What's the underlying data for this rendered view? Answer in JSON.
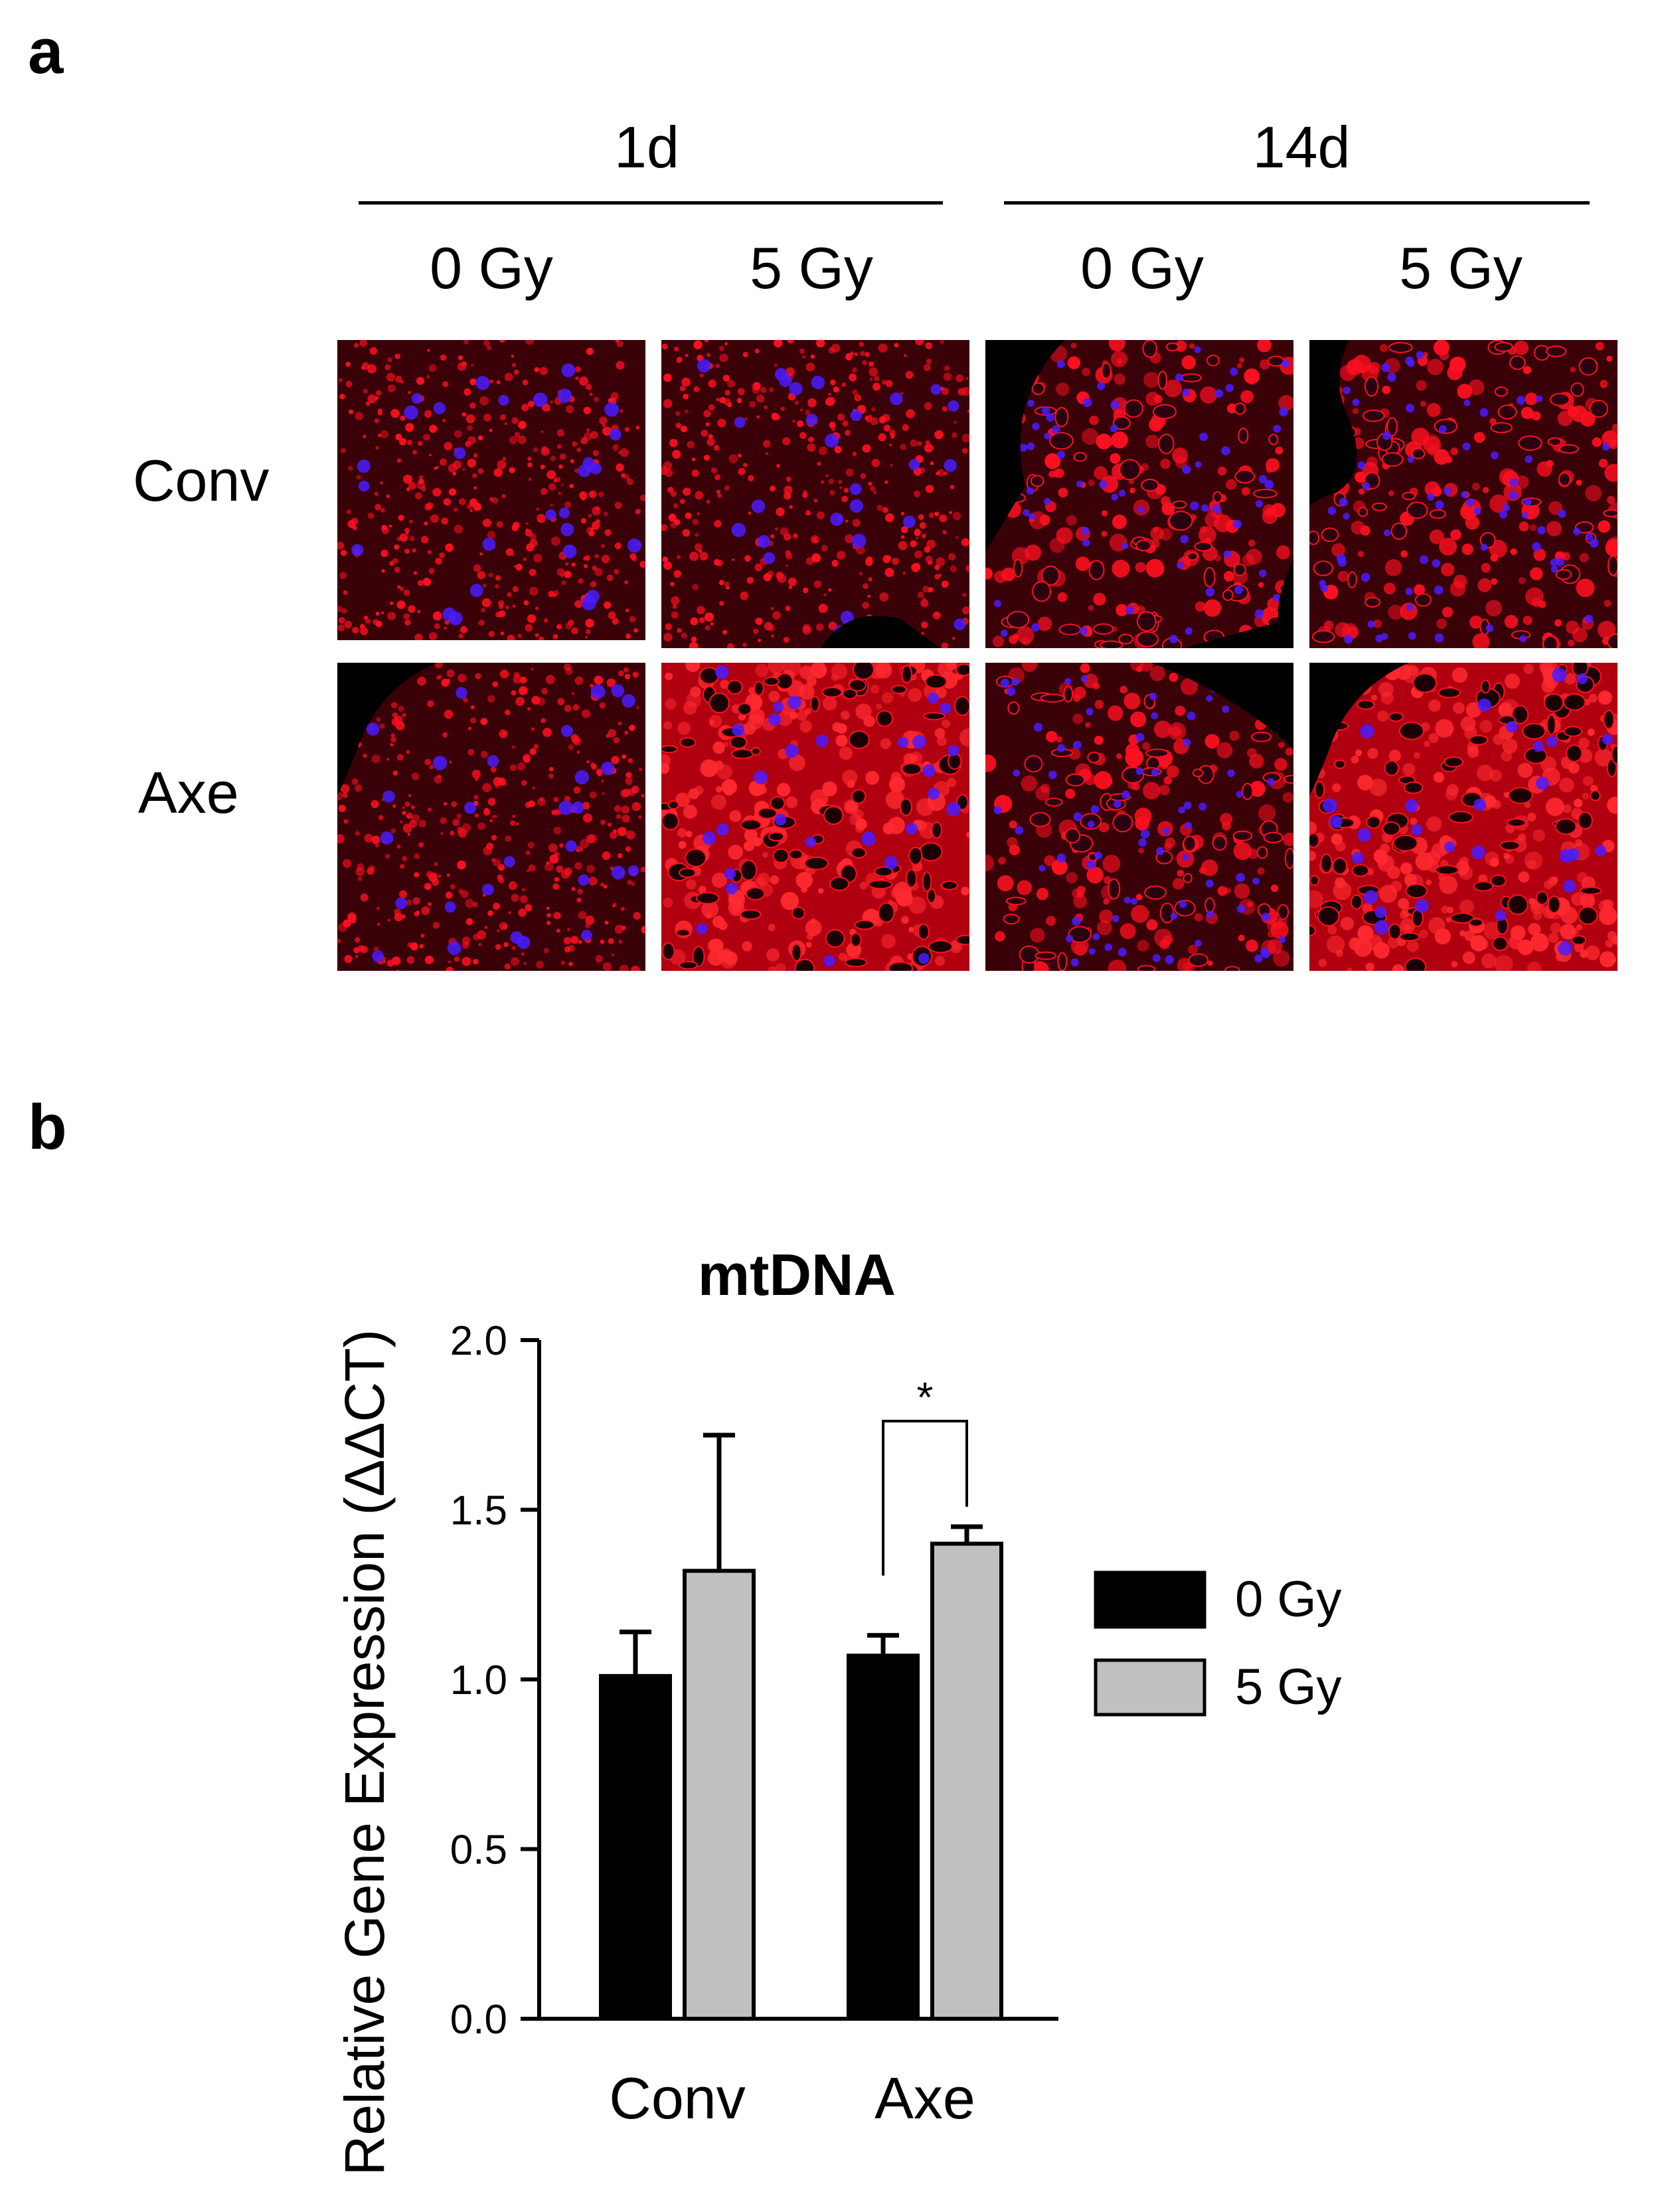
{
  "panel_a": {
    "letter": "a",
    "time_points": [
      "1d",
      "14d"
    ],
    "doses": [
      "0 Gy",
      "5 Gy",
      "0 Gy",
      "5 Gy"
    ],
    "rows": [
      "Conv",
      "Axe"
    ],
    "colors": {
      "stain": "#ff1020",
      "nuclei": "#4a1cff",
      "background": "#000000"
    }
  },
  "panel_b": {
    "letter": "b"
  },
  "chart_data": {
    "type": "bar",
    "title": "mtDNA",
    "ylabel": "Relative Gene Expression (ΔΔCT)",
    "xlabel": "",
    "categories": [
      "Conv",
      "Axe"
    ],
    "ylim": [
      0,
      2.0
    ],
    "yticks": [
      "0.0",
      "0.5",
      "1.0",
      "1.5",
      "2.0"
    ],
    "series": [
      {
        "name": "0 Gy",
        "values": [
          1.01,
          1.07
        ],
        "errors": [
          0.13,
          0.06
        ],
        "color": "#000000"
      },
      {
        "name": "5 Gy",
        "values": [
          1.32,
          1.4
        ],
        "errors": [
          0.4,
          0.05
        ],
        "color": "#c0c0c0"
      }
    ],
    "significance": [
      {
        "category": "Axe",
        "label": "*"
      }
    ],
    "legend": "right",
    "grid": false
  }
}
